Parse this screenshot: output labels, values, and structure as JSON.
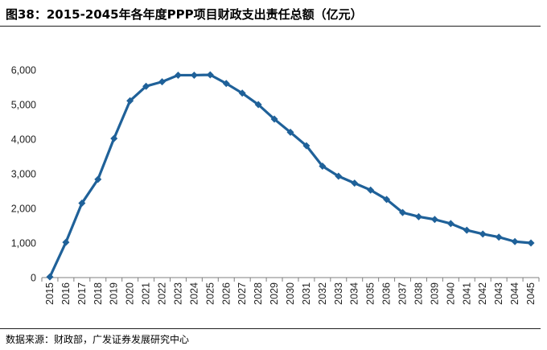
{
  "title": "图38：2015-2045年各年度PPP项目财政支出责任总额（亿元）",
  "source": "数据来源：财政部，广发证券发展研究中心",
  "colors": {
    "series": "#1f6199",
    "axis": "#7f7f7f",
    "text": "#222222"
  },
  "chart_data": {
    "type": "line",
    "x": [
      "2015",
      "2016",
      "2017",
      "2018",
      "2019",
      "2020",
      "2021",
      "2022",
      "2023",
      "2024",
      "2025",
      "2026",
      "2027",
      "2028",
      "2029",
      "2030",
      "2031",
      "2032",
      "2033",
      "2034",
      "2035",
      "2036",
      "2037",
      "2038",
      "2039",
      "2040",
      "2041",
      "2042",
      "2043",
      "2044",
      "2045"
    ],
    "series": [
      {
        "values": [
          20,
          1020,
          2150,
          2840,
          4020,
          5110,
          5530,
          5660,
          5850,
          5850,
          5860,
          5610,
          5330,
          5000,
          4580,
          4200,
          3810,
          3220,
          2930,
          2730,
          2530,
          2260,
          1880,
          1760,
          1680,
          1560,
          1370,
          1260,
          1170,
          1040,
          1000
        ]
      }
    ],
    "ylim": [
      0,
      6000
    ],
    "yticks": [
      0,
      1000,
      2000,
      3000,
      4000,
      5000,
      6000
    ],
    "ytick_labels": [
      "0",
      "1,000",
      "2,000",
      "3,000",
      "4,000",
      "5,000",
      "6,000"
    ],
    "xlabel": "",
    "ylabel": "",
    "grid": false,
    "marker": "diamond"
  }
}
